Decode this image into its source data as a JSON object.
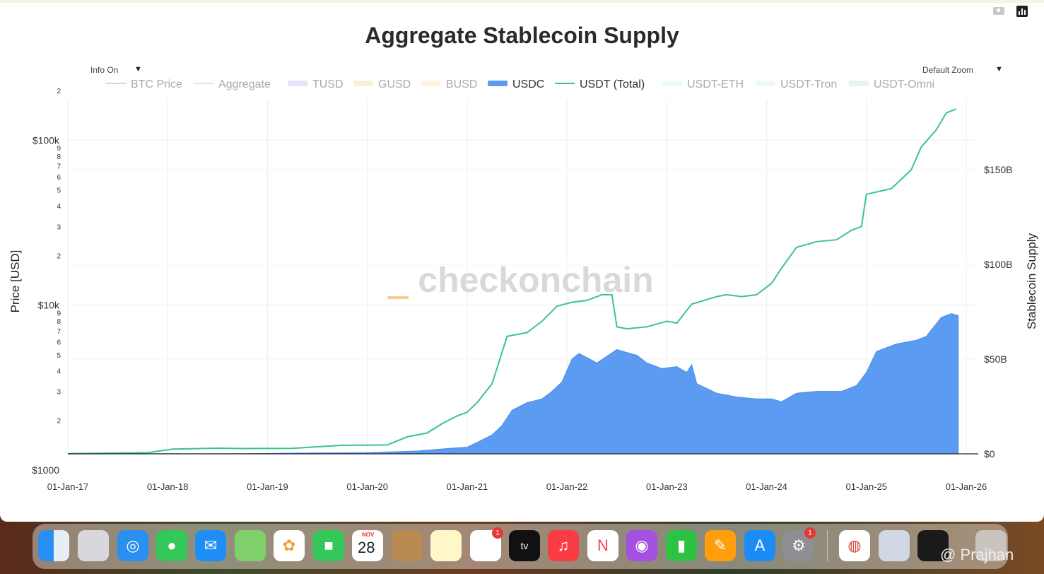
{
  "page": {
    "title": "Aggregate Stablecoin Supply"
  },
  "controls": {
    "info": "Info On",
    "zoom": "Default Zoom"
  },
  "colors": {
    "btc": "#9e9e9e",
    "aggregate": "#f0b0b8",
    "tusd": "#c9bef0",
    "gusd": "#f8d6a8",
    "busd": "#fbe3c0",
    "usdc": "#5b9cf2",
    "usdt_total": "#3bc488",
    "usdt_eth": "#d6f3e2",
    "usdt_tron": "#d6f3e2",
    "usdt_omni": "#c3ecd5",
    "axis": "#222222",
    "grid": "#eeeeee"
  },
  "watermark": {
    "text": "checkonchain",
    "color": "#d9d9d9",
    "accent": "#f6cf94"
  },
  "chart_data": {
    "type": "area",
    "title": "Aggregate Stablecoin Supply",
    "ylabel_left": "Price [USD]",
    "ylabel_right": "Stablecoin Supply",
    "left_axis": {
      "scale": "log",
      "range": [
        1000,
        200000
      ],
      "major_ticks": [
        {
          "v": 100000,
          "label": "$100k"
        },
        {
          "v": 10000,
          "label": "$10k"
        },
        {
          "v": 1000,
          "label": "$1000"
        }
      ],
      "minor_ticks": [
        {
          "v": 200000,
          "label": "2"
        },
        {
          "v": 90000,
          "label": "9"
        },
        {
          "v": 80000,
          "label": "8"
        },
        {
          "v": 70000,
          "label": "7"
        },
        {
          "v": 60000,
          "label": "6"
        },
        {
          "v": 50000,
          "label": "5"
        },
        {
          "v": 40000,
          "label": "4"
        },
        {
          "v": 30000,
          "label": "3"
        },
        {
          "v": 20000,
          "label": "2"
        },
        {
          "v": 9000,
          "label": "9"
        },
        {
          "v": 8000,
          "label": "8"
        },
        {
          "v": 7000,
          "label": "7"
        },
        {
          "v": 6000,
          "label": "6"
        },
        {
          "v": 5000,
          "label": "5"
        },
        {
          "v": 4000,
          "label": "4"
        },
        {
          "v": 3000,
          "label": "3"
        },
        {
          "v": 2000,
          "label": "2"
        }
      ]
    },
    "right_axis": {
      "range_billion": [
        0,
        200
      ],
      "ticks": [
        {
          "v": 0,
          "label": "$0"
        },
        {
          "v": 50,
          "label": "$50B"
        },
        {
          "v": 100,
          "label": "$100B"
        },
        {
          "v": 150,
          "label": "$150B"
        }
      ]
    },
    "x_axis": {
      "range": [
        2017.0,
        2026.0
      ],
      "ticks": [
        {
          "v": 2017,
          "label": "01-Jan-17"
        },
        {
          "v": 2018,
          "label": "01-Jan-18"
        },
        {
          "v": 2019,
          "label": "01-Jan-19"
        },
        {
          "v": 2020,
          "label": "01-Jan-20"
        },
        {
          "v": 2021,
          "label": "01-Jan-21"
        },
        {
          "v": 2022,
          "label": "01-Jan-22"
        },
        {
          "v": 2023,
          "label": "01-Jan-23"
        },
        {
          "v": 2024,
          "label": "01-Jan-24"
        },
        {
          "v": 2025,
          "label": "01-Jan-25"
        },
        {
          "v": 2026,
          "label": "01-Jan-26"
        }
      ]
    },
    "legend": {
      "placement": "top",
      "items": [
        {
          "name": "BTC Price",
          "key": "btc",
          "mark": "line",
          "faded": true
        },
        {
          "name": "Aggregate",
          "key": "aggregate",
          "mark": "line",
          "faded": true
        },
        {
          "name": "TUSD",
          "key": "tusd",
          "mark": "fill",
          "faded": true
        },
        {
          "name": "GUSD",
          "key": "gusd",
          "mark": "fill",
          "faded": true
        },
        {
          "name": "BUSD",
          "key": "busd",
          "mark": "fill",
          "faded": true
        },
        {
          "name": "USDC",
          "key": "usdc",
          "mark": "fill",
          "faded": false
        },
        {
          "name": "USDT (Total)",
          "key": "usdt_total",
          "mark": "line",
          "faded": false
        },
        {
          "name": "USDT-ETH",
          "key": "usdt_eth",
          "mark": "fill",
          "faded": true
        },
        {
          "name": "USDT-Tron",
          "key": "usdt_tron",
          "mark": "fill",
          "faded": true
        },
        {
          "name": "USDT-Omni",
          "key": "usdt_omni",
          "mark": "fill",
          "faded": true
        }
      ]
    },
    "series": [
      {
        "name": "USDC",
        "type": "area",
        "unit": "billion USD",
        "points": [
          [
            2017.0,
            0.0
          ],
          [
            2018.8,
            0.1
          ],
          [
            2019.5,
            0.5
          ],
          [
            2020.0,
            0.6
          ],
          [
            2020.5,
            1.5
          ],
          [
            2020.85,
            3.0
          ],
          [
            2021.0,
            3.5
          ],
          [
            2021.1,
            6
          ],
          [
            2021.25,
            10
          ],
          [
            2021.35,
            15
          ],
          [
            2021.45,
            23
          ],
          [
            2021.6,
            27
          ],
          [
            2021.75,
            29
          ],
          [
            2021.85,
            33
          ],
          [
            2021.95,
            38
          ],
          [
            2022.05,
            50
          ],
          [
            2022.12,
            53
          ],
          [
            2022.3,
            48
          ],
          [
            2022.5,
            55
          ],
          [
            2022.7,
            52
          ],
          [
            2022.8,
            48
          ],
          [
            2022.95,
            45
          ],
          [
            2023.1,
            46
          ],
          [
            2023.2,
            43
          ],
          [
            2023.25,
            47
          ],
          [
            2023.3,
            37
          ],
          [
            2023.5,
            32
          ],
          [
            2023.7,
            30
          ],
          [
            2023.9,
            29
          ],
          [
            2024.05,
            29
          ],
          [
            2024.15,
            27.5
          ],
          [
            2024.3,
            32
          ],
          [
            2024.5,
            33
          ],
          [
            2024.75,
            33
          ],
          [
            2024.9,
            36
          ],
          [
            2025.0,
            43
          ],
          [
            2025.1,
            54
          ],
          [
            2025.3,
            58
          ],
          [
            2025.5,
            60
          ],
          [
            2025.6,
            62
          ],
          [
            2025.75,
            72
          ],
          [
            2025.85,
            74
          ],
          [
            2025.92,
            73
          ]
        ]
      },
      {
        "name": "USDT (Total)",
        "type": "line",
        "unit": "billion USD",
        "points": [
          [
            2017.0,
            0.1
          ],
          [
            2017.8,
            0.6
          ],
          [
            2018.05,
            2.5
          ],
          [
            2018.5,
            3.0
          ],
          [
            2018.75,
            2.8
          ],
          [
            2019.25,
            2.9
          ],
          [
            2019.75,
            4.5
          ],
          [
            2020.0,
            4.6
          ],
          [
            2020.2,
            4.7
          ],
          [
            2020.4,
            9
          ],
          [
            2020.6,
            11
          ],
          [
            2020.75,
            16
          ],
          [
            2020.9,
            20
          ],
          [
            2021.0,
            22
          ],
          [
            2021.1,
            27
          ],
          [
            2021.25,
            37
          ],
          [
            2021.4,
            62
          ],
          [
            2021.6,
            64
          ],
          [
            2021.75,
            70
          ],
          [
            2021.9,
            78
          ],
          [
            2022.05,
            80
          ],
          [
            2022.2,
            81
          ],
          [
            2022.35,
            84
          ],
          [
            2022.45,
            84
          ],
          [
            2022.5,
            67
          ],
          [
            2022.6,
            66
          ],
          [
            2022.8,
            67
          ],
          [
            2023.0,
            70
          ],
          [
            2023.1,
            69
          ],
          [
            2023.25,
            79
          ],
          [
            2023.5,
            83
          ],
          [
            2023.6,
            84
          ],
          [
            2023.75,
            83
          ],
          [
            2023.9,
            84
          ],
          [
            2024.05,
            90
          ],
          [
            2024.15,
            98
          ],
          [
            2024.3,
            109
          ],
          [
            2024.5,
            112
          ],
          [
            2024.7,
            113
          ],
          [
            2024.85,
            118
          ],
          [
            2024.95,
            120
          ],
          [
            2025.0,
            137
          ],
          [
            2025.25,
            140
          ],
          [
            2025.45,
            150
          ],
          [
            2025.55,
            162
          ],
          [
            2025.7,
            171
          ],
          [
            2025.8,
            180
          ],
          [
            2025.9,
            182
          ]
        ]
      }
    ]
  },
  "dock": {
    "calendar_month": "NOV",
    "calendar_day": "28",
    "reminders_badge": "1",
    "settings_badge": "1",
    "watermark": "@ Prajhan"
  }
}
